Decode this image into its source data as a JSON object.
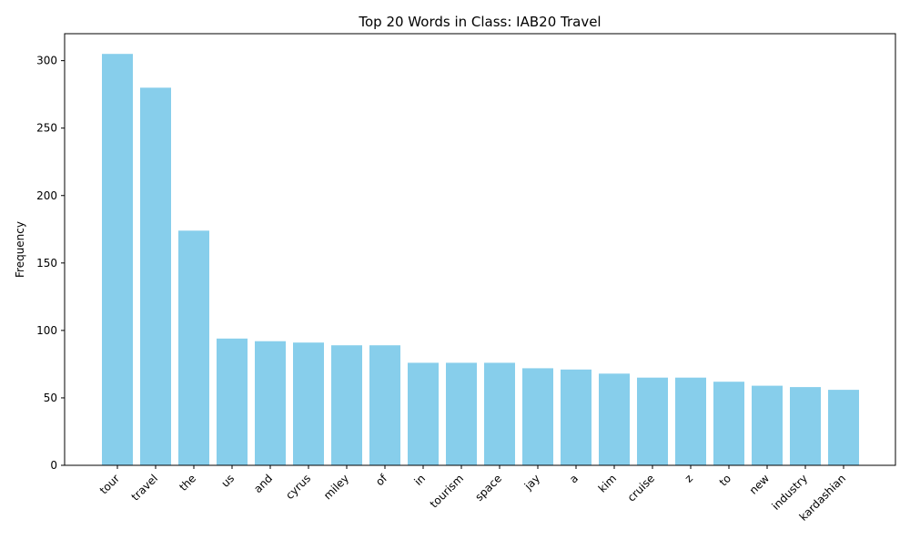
{
  "chart_data": {
    "type": "bar",
    "title": "Top 20 Words in Class: IAB20 Travel",
    "xlabel": "",
    "ylabel": "Frequency",
    "ylim": [
      0,
      320
    ],
    "yticks": [
      0,
      50,
      100,
      150,
      200,
      250,
      300
    ],
    "bar_color": "#87ceeb",
    "grid": false,
    "categories": [
      "tour",
      "travel",
      "the",
      "us",
      "and",
      "cyrus",
      "miley",
      "of",
      "in",
      "tourism",
      "space",
      "jay",
      "a",
      "kim",
      "cruise",
      "z",
      "to",
      "new",
      "industry",
      "kardashian"
    ],
    "values": [
      305,
      280,
      174,
      94,
      92,
      91,
      89,
      89,
      76,
      76,
      76,
      72,
      71,
      68,
      65,
      65,
      62,
      59,
      58,
      56
    ]
  }
}
